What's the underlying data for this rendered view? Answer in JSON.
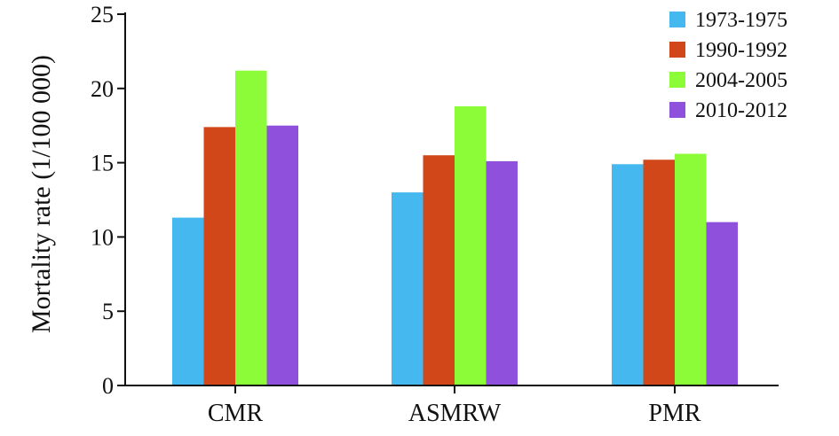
{
  "chart_data": {
    "type": "bar",
    "categories": [
      "CMR",
      "ASMRW",
      "PMR"
    ],
    "series": [
      {
        "name": "1973-1975",
        "color": "#45b8f0",
        "values": [
          11.3,
          13.0,
          14.9
        ]
      },
      {
        "name": "1990-1992",
        "color": "#d1471a",
        "values": [
          17.4,
          15.5,
          15.2
        ]
      },
      {
        "name": "2004-2005",
        "color": "#8cfc38",
        "values": [
          21.2,
          18.8,
          15.6
        ]
      },
      {
        "name": "2010-2012",
        "color": "#8f51db",
        "values": [
          17.5,
          15.1,
          11.0
        ]
      }
    ],
    "title": "",
    "xlabel": "",
    "ylabel": "Mortality rate (1/100 000)",
    "ylim": [
      0,
      25
    ],
    "yticks": [
      0,
      5,
      10,
      15,
      20,
      25
    ],
    "grid": false,
    "legend_position": "top-right"
  }
}
